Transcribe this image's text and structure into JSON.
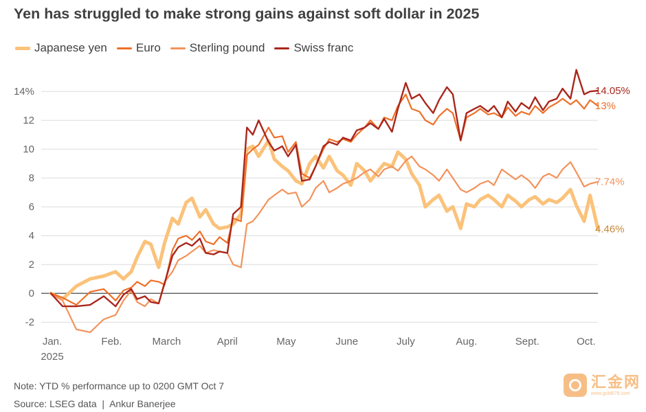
{
  "chart_data": {
    "type": "line",
    "title": "Yen has struggled to make strong gains against soft dollar in 2025",
    "ylabel": "",
    "xlabel": "",
    "ylim": [
      -2.8,
      15.2
    ],
    "y_ticks": [
      {
        "value": 14,
        "label": "14%"
      },
      {
        "value": 12,
        "label": "12"
      },
      {
        "value": 10,
        "label": "10"
      },
      {
        "value": 8,
        "label": "8"
      },
      {
        "value": 6,
        "label": "6"
      },
      {
        "value": 4,
        "label": "4"
      },
      {
        "value": 2,
        "label": "2"
      },
      {
        "value": 0,
        "label": "0"
      },
      {
        "value": -2,
        "label": "-2"
      }
    ],
    "x_ticks": [
      {
        "date": "2025-01-01",
        "label": "Jan.",
        "sublabel": "2025"
      },
      {
        "date": "2025-02-01",
        "label": "Feb.",
        "sublabel": ""
      },
      {
        "date": "2025-03-01",
        "label": "March",
        "sublabel": ""
      },
      {
        "date": "2025-04-01",
        "label": "April",
        "sublabel": ""
      },
      {
        "date": "2025-05-01",
        "label": "May",
        "sublabel": ""
      },
      {
        "date": "2025-06-01",
        "label": "June",
        "sublabel": ""
      },
      {
        "date": "2025-07-01",
        "label": "July",
        "sublabel": ""
      },
      {
        "date": "2025-08-01",
        "label": "Aug.",
        "sublabel": ""
      },
      {
        "date": "2025-09-01",
        "label": "Sept.",
        "sublabel": ""
      },
      {
        "date": "2025-10-01",
        "label": "Oct.",
        "sublabel": ""
      }
    ],
    "x_range": [
      "2025-01-01",
      "2025-10-07"
    ],
    "grid": true,
    "legend_position": "top-left",
    "series": [
      {
        "name": "Japanese yen",
        "color": "#fbc27a",
        "end_label": "4.46%",
        "x": [
          "2025-01-01",
          "2025-01-07",
          "2025-01-14",
          "2025-01-21",
          "2025-01-28",
          "2025-02-03",
          "2025-02-07",
          "2025-02-11",
          "2025-02-14",
          "2025-02-18",
          "2025-02-21",
          "2025-02-25",
          "2025-02-28",
          "2025-03-04",
          "2025-03-07",
          "2025-03-11",
          "2025-03-14",
          "2025-03-18",
          "2025-03-21",
          "2025-03-25",
          "2025-03-28",
          "2025-04-01",
          "2025-04-04",
          "2025-04-08",
          "2025-04-11",
          "2025-04-14",
          "2025-04-17",
          "2025-04-22",
          "2025-04-25",
          "2025-04-29",
          "2025-05-02",
          "2025-05-06",
          "2025-05-09",
          "2025-05-13",
          "2025-05-16",
          "2025-05-20",
          "2025-05-23",
          "2025-05-27",
          "2025-05-30",
          "2025-06-03",
          "2025-06-06",
          "2025-06-10",
          "2025-06-13",
          "2025-06-17",
          "2025-06-20",
          "2025-06-24",
          "2025-06-27",
          "2025-07-01",
          "2025-07-04",
          "2025-07-08",
          "2025-07-11",
          "2025-07-15",
          "2025-07-18",
          "2025-07-22",
          "2025-07-25",
          "2025-07-29",
          "2025-08-01",
          "2025-08-05",
          "2025-08-08",
          "2025-08-12",
          "2025-08-15",
          "2025-08-19",
          "2025-08-22",
          "2025-08-26",
          "2025-08-29",
          "2025-09-02",
          "2025-09-05",
          "2025-09-09",
          "2025-09-12",
          "2025-09-16",
          "2025-09-19",
          "2025-09-23",
          "2025-09-26",
          "2025-09-30",
          "2025-10-03",
          "2025-10-07"
        ],
        "values": [
          0,
          -0.4,
          0.5,
          1.0,
          1.2,
          1.5,
          1.0,
          1.5,
          2.5,
          3.6,
          3.4,
          1.8,
          3.5,
          5.2,
          4.8,
          6.3,
          6.6,
          5.3,
          5.8,
          4.8,
          4.5,
          4.6,
          4.8,
          5.5,
          10.0,
          10.2,
          9.5,
          10.6,
          9.3,
          8.8,
          8.5,
          7.8,
          7.6,
          9.0,
          9.5,
          8.7,
          9.5,
          8.5,
          8.2,
          7.5,
          9.0,
          8.5,
          7.8,
          8.5,
          9.0,
          8.8,
          9.8,
          9.3,
          8.3,
          7.5,
          6.0,
          6.5,
          6.8,
          5.7,
          6.0,
          4.5,
          6.2,
          6.0,
          6.5,
          6.8,
          6.5,
          6.0,
          6.8,
          6.4,
          6.0,
          6.5,
          6.7,
          6.2,
          6.5,
          6.3,
          6.6,
          7.2,
          6.1,
          5.0,
          6.8,
          4.46
        ]
      },
      {
        "name": "Euro",
        "color": "#ef6f27",
        "end_label": "13%",
        "x": [
          "2025-01-01",
          "2025-01-07",
          "2025-01-14",
          "2025-01-21",
          "2025-01-28",
          "2025-02-03",
          "2025-02-07",
          "2025-02-11",
          "2025-02-14",
          "2025-02-18",
          "2025-02-21",
          "2025-02-25",
          "2025-02-28",
          "2025-03-04",
          "2025-03-07",
          "2025-03-11",
          "2025-03-14",
          "2025-03-18",
          "2025-03-21",
          "2025-03-25",
          "2025-03-28",
          "2025-04-01",
          "2025-04-04",
          "2025-04-08",
          "2025-04-11",
          "2025-04-14",
          "2025-04-17",
          "2025-04-22",
          "2025-04-25",
          "2025-04-29",
          "2025-05-02",
          "2025-05-06",
          "2025-05-09",
          "2025-05-13",
          "2025-05-16",
          "2025-05-20",
          "2025-05-23",
          "2025-05-27",
          "2025-05-30",
          "2025-06-03",
          "2025-06-06",
          "2025-06-10",
          "2025-06-13",
          "2025-06-17",
          "2025-06-20",
          "2025-06-24",
          "2025-06-27",
          "2025-07-01",
          "2025-07-04",
          "2025-07-08",
          "2025-07-11",
          "2025-07-15",
          "2025-07-18",
          "2025-07-22",
          "2025-07-25",
          "2025-07-29",
          "2025-08-01",
          "2025-08-05",
          "2025-08-08",
          "2025-08-12",
          "2025-08-15",
          "2025-08-19",
          "2025-08-22",
          "2025-08-26",
          "2025-08-29",
          "2025-09-02",
          "2025-09-05",
          "2025-09-09",
          "2025-09-12",
          "2025-09-16",
          "2025-09-19",
          "2025-09-23",
          "2025-09-26",
          "2025-09-30",
          "2025-10-03",
          "2025-10-07"
        ],
        "values": [
          0,
          -0.3,
          -0.8,
          0.1,
          0.3,
          -0.5,
          0.2,
          0.4,
          0.8,
          0.5,
          0.9,
          0.8,
          0.6,
          3.0,
          3.8,
          4.0,
          3.7,
          4.3,
          3.6,
          3.4,
          3.9,
          3.5,
          5.2,
          5.0,
          9.6,
          10.0,
          10.3,
          11.5,
          10.8,
          10.9,
          9.8,
          10.5,
          8.3,
          8.0,
          8.8,
          10.0,
          10.7,
          10.5,
          10.7,
          10.5,
          11.0,
          11.5,
          12.0,
          11.4,
          12.2,
          12.0,
          13.0,
          13.8,
          12.8,
          12.6,
          12.0,
          11.7,
          12.3,
          12.8,
          12.5,
          10.6,
          12.2,
          12.5,
          12.8,
          12.4,
          12.5,
          12.2,
          12.9,
          12.3,
          12.6,
          12.4,
          13.0,
          12.5,
          12.9,
          13.2,
          13.5,
          13.1,
          13.4,
          12.8,
          13.4,
          13.0
        ]
      },
      {
        "name": "Sterling pound",
        "color": "#f3925a",
        "end_label": "7.74%",
        "x": [
          "2025-01-01",
          "2025-01-07",
          "2025-01-14",
          "2025-01-21",
          "2025-01-28",
          "2025-02-03",
          "2025-02-07",
          "2025-02-11",
          "2025-02-14",
          "2025-02-18",
          "2025-02-21",
          "2025-02-25",
          "2025-02-28",
          "2025-03-04",
          "2025-03-07",
          "2025-03-11",
          "2025-03-14",
          "2025-03-18",
          "2025-03-21",
          "2025-03-25",
          "2025-03-28",
          "2025-04-01",
          "2025-04-04",
          "2025-04-08",
          "2025-04-11",
          "2025-04-14",
          "2025-04-17",
          "2025-04-22",
          "2025-04-25",
          "2025-04-29",
          "2025-05-02",
          "2025-05-06",
          "2025-05-09",
          "2025-05-13",
          "2025-05-16",
          "2025-05-20",
          "2025-05-23",
          "2025-05-27",
          "2025-05-30",
          "2025-06-03",
          "2025-06-06",
          "2025-06-10",
          "2025-06-13",
          "2025-06-17",
          "2025-06-20",
          "2025-06-24",
          "2025-06-27",
          "2025-07-01",
          "2025-07-04",
          "2025-07-08",
          "2025-07-11",
          "2025-07-15",
          "2025-07-18",
          "2025-07-22",
          "2025-07-25",
          "2025-07-29",
          "2025-08-01",
          "2025-08-05",
          "2025-08-08",
          "2025-08-12",
          "2025-08-15",
          "2025-08-19",
          "2025-08-22",
          "2025-08-26",
          "2025-08-29",
          "2025-09-02",
          "2025-09-05",
          "2025-09-09",
          "2025-09-12",
          "2025-09-16",
          "2025-09-19",
          "2025-09-23",
          "2025-09-26",
          "2025-09-30",
          "2025-10-03",
          "2025-10-07"
        ],
        "values": [
          0,
          -0.5,
          -2.5,
          -2.7,
          -1.8,
          -1.5,
          -0.5,
          0.2,
          -0.6,
          -0.9,
          -0.4,
          -0.7,
          0.8,
          1.5,
          2.3,
          2.6,
          2.9,
          3.3,
          2.8,
          3.0,
          2.9,
          2.8,
          2.0,
          1.8,
          4.8,
          5.0,
          5.5,
          6.5,
          6.8,
          7.2,
          6.9,
          7.0,
          6.0,
          6.5,
          7.3,
          7.8,
          7.0,
          7.3,
          7.6,
          7.8,
          8.0,
          8.4,
          8.6,
          8.1,
          8.6,
          8.8,
          8.5,
          9.2,
          9.5,
          8.8,
          8.6,
          8.2,
          7.8,
          8.6,
          8.0,
          7.2,
          7.0,
          7.3,
          7.6,
          7.8,
          7.5,
          8.6,
          8.3,
          7.9,
          8.2,
          7.8,
          7.3,
          8.1,
          8.3,
          8.0,
          8.6,
          9.1,
          8.4,
          7.4,
          7.6,
          7.74
        ]
      },
      {
        "name": "Swiss franc",
        "color": "#a9261c",
        "end_label": "14.05%",
        "x": [
          "2025-01-01",
          "2025-01-07",
          "2025-01-14",
          "2025-01-21",
          "2025-01-28",
          "2025-02-03",
          "2025-02-07",
          "2025-02-11",
          "2025-02-14",
          "2025-02-18",
          "2025-02-21",
          "2025-02-25",
          "2025-02-28",
          "2025-03-04",
          "2025-03-07",
          "2025-03-11",
          "2025-03-14",
          "2025-03-18",
          "2025-03-21",
          "2025-03-25",
          "2025-03-28",
          "2025-04-01",
          "2025-04-04",
          "2025-04-08",
          "2025-04-11",
          "2025-04-14",
          "2025-04-17",
          "2025-04-22",
          "2025-04-25",
          "2025-04-29",
          "2025-05-02",
          "2025-05-06",
          "2025-05-09",
          "2025-05-13",
          "2025-05-16",
          "2025-05-20",
          "2025-05-23",
          "2025-05-27",
          "2025-05-30",
          "2025-06-03",
          "2025-06-06",
          "2025-06-10",
          "2025-06-13",
          "2025-06-17",
          "2025-06-20",
          "2025-06-24",
          "2025-06-27",
          "2025-07-01",
          "2025-07-04",
          "2025-07-08",
          "2025-07-11",
          "2025-07-15",
          "2025-07-18",
          "2025-07-22",
          "2025-07-25",
          "2025-07-29",
          "2025-08-01",
          "2025-08-05",
          "2025-08-08",
          "2025-08-12",
          "2025-08-15",
          "2025-08-19",
          "2025-08-22",
          "2025-08-26",
          "2025-08-29",
          "2025-09-02",
          "2025-09-05",
          "2025-09-09",
          "2025-09-12",
          "2025-09-16",
          "2025-09-19",
          "2025-09-23",
          "2025-09-26",
          "2025-09-30",
          "2025-10-03",
          "2025-10-07"
        ],
        "values": [
          0,
          -0.9,
          -0.9,
          -0.8,
          -0.2,
          -0.9,
          -0.1,
          0.3,
          -0.4,
          -0.2,
          -0.6,
          -0.7,
          0.7,
          2.6,
          3.2,
          3.5,
          3.3,
          3.8,
          2.8,
          2.7,
          2.9,
          2.8,
          5.5,
          6.0,
          11.5,
          11.0,
          12.0,
          10.5,
          9.9,
          10.2,
          9.5,
          10.3,
          7.8,
          7.9,
          8.8,
          10.2,
          10.5,
          10.3,
          10.8,
          10.6,
          11.3,
          11.5,
          11.8,
          11.4,
          12.1,
          11.2,
          12.8,
          14.6,
          13.5,
          13.8,
          13.2,
          12.5,
          13.4,
          14.3,
          13.8,
          10.6,
          12.5,
          12.8,
          13.0,
          12.6,
          13.0,
          12.2,
          13.3,
          12.6,
          13.2,
          12.8,
          13.6,
          12.7,
          13.3,
          13.5,
          14.2,
          13.5,
          15.5,
          13.8,
          14.0,
          14.05
        ]
      }
    ]
  },
  "legend": [
    {
      "name": "Japanese yen",
      "color": "#fbc27a"
    },
    {
      "name": "Euro",
      "color": "#ef6f27"
    },
    {
      "name": "Sterling pound",
      "color": "#f3925a"
    },
    {
      "name": "Swiss franc",
      "color": "#a9261c"
    }
  ],
  "footer": {
    "note": "Note: YTD % performance up to 0200 GMT Oct 7",
    "source": "Source: LSEG data",
    "credit": "Ankur Banerjee"
  },
  "watermark": {
    "text": "汇金网",
    "url": "www.gold678.com",
    "icon": "gold-coin-logo-icon"
  }
}
